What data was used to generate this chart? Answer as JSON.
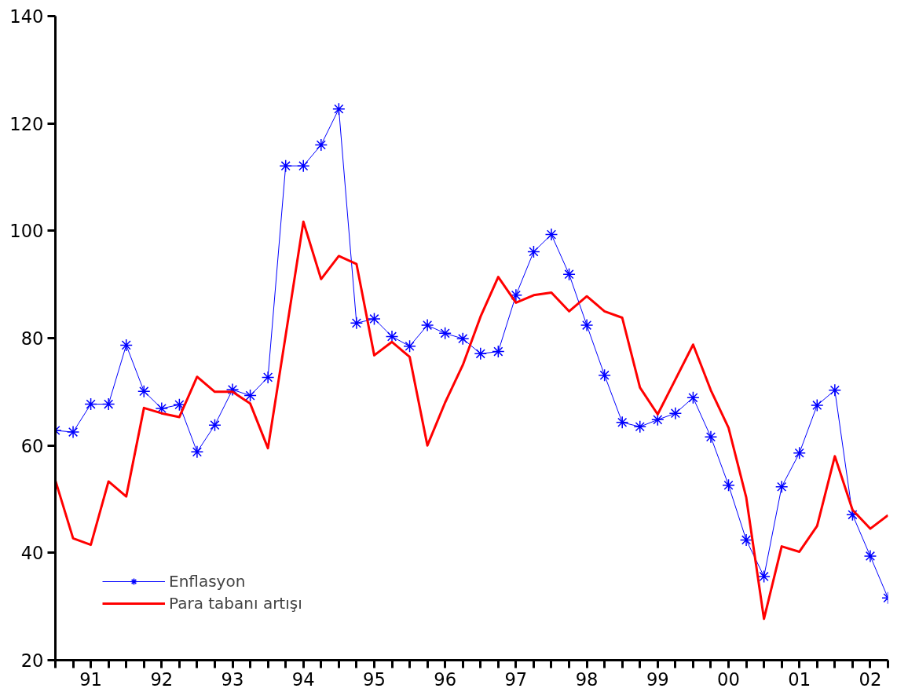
{
  "chart_data": {
    "type": "line",
    "categories": [
      null,
      null,
      "91",
      null,
      null,
      null,
      "92",
      null,
      null,
      null,
      "93",
      null,
      null,
      null,
      "94",
      null,
      null,
      null,
      "95",
      null,
      null,
      null,
      "96",
      null,
      null,
      null,
      "97",
      null,
      null,
      null,
      "98",
      null,
      null,
      null,
      "99",
      null,
      null,
      null,
      "00",
      null,
      null,
      null,
      "01",
      null,
      null,
      null,
      "02",
      null
    ],
    "series": [
      {
        "name": "Enflasyon",
        "color": "#0000ff",
        "marker": "cross",
        "values": [
          62.8,
          62.5,
          67.7,
          67.7,
          78.7,
          70.1,
          66.9,
          67.6,
          58.8,
          63.8,
          70.4,
          69.3,
          72.7,
          112.1,
          112.1,
          116,
          122.7,
          82.8,
          83.6,
          80.3,
          78.5,
          82.4,
          80.9,
          79.9,
          77.1,
          77.5,
          88,
          96.1,
          99.3,
          91.9,
          82.4,
          73.1,
          64.3,
          63.5,
          64.8,
          66,
          68.9,
          61.6,
          52.6,
          42.4,
          35.6,
          52.3,
          58.6,
          67.5,
          70.3,
          47.1,
          39.4,
          31.6
        ]
      },
      {
        "name": "Para tabanı artışı",
        "color": "#ff0000",
        "marker": "none",
        "values": [
          53.5,
          42.7,
          41.5,
          53.3,
          50.5,
          67,
          66,
          65.3,
          72.8,
          70,
          70,
          67.8,
          59.5,
          80.5,
          101.7,
          91,
          95.3,
          93.8,
          76.8,
          79.3,
          76.5,
          60,
          68,
          75,
          84,
          91.4,
          86.6,
          88,
          88.5,
          85,
          87.8,
          85,
          83.8,
          70.8,
          65.8,
          72.3,
          78.8,
          70.3,
          63.3,
          50.3,
          27.7,
          41.2,
          40.2,
          45,
          58,
          48,
          44.5,
          47
        ]
      }
    ],
    "ylim": [
      20,
      140
    ],
    "yticks": [
      20,
      40,
      60,
      80,
      100,
      120,
      140
    ],
    "grid": false,
    "legend": "bottom left",
    "line_style": "solid"
  }
}
